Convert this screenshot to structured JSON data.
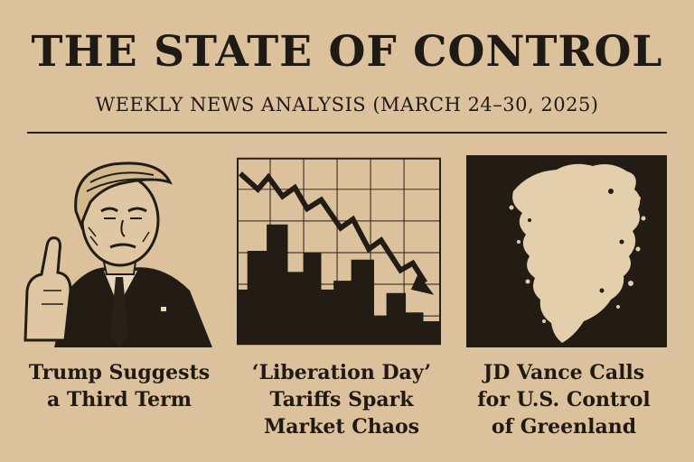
{
  "header": {
    "title": "THE STATE OF CONTROL",
    "subtitle": "WEEKLY NEWS ANALYSIS (MARCH 24–30, 2025)"
  },
  "stories": [
    {
      "illustration": "portrait-illustration",
      "headline_lines": [
        "Trump Suggests",
        "a Third Term"
      ]
    },
    {
      "illustration": "falling-market-chart-illustration",
      "headline_lines": [
        "‘Liberation Day’",
        "Tariffs Spark",
        "Market Chaos"
      ]
    },
    {
      "illustration": "greenland-map-illustration",
      "headline_lines": [
        "JD Vance Calls",
        "for U.S. Control",
        "of Greenland"
      ]
    }
  ],
  "colors": {
    "paper": "#dcc29c",
    "ink": "#201a14",
    "panel_dark": "#231c15"
  }
}
